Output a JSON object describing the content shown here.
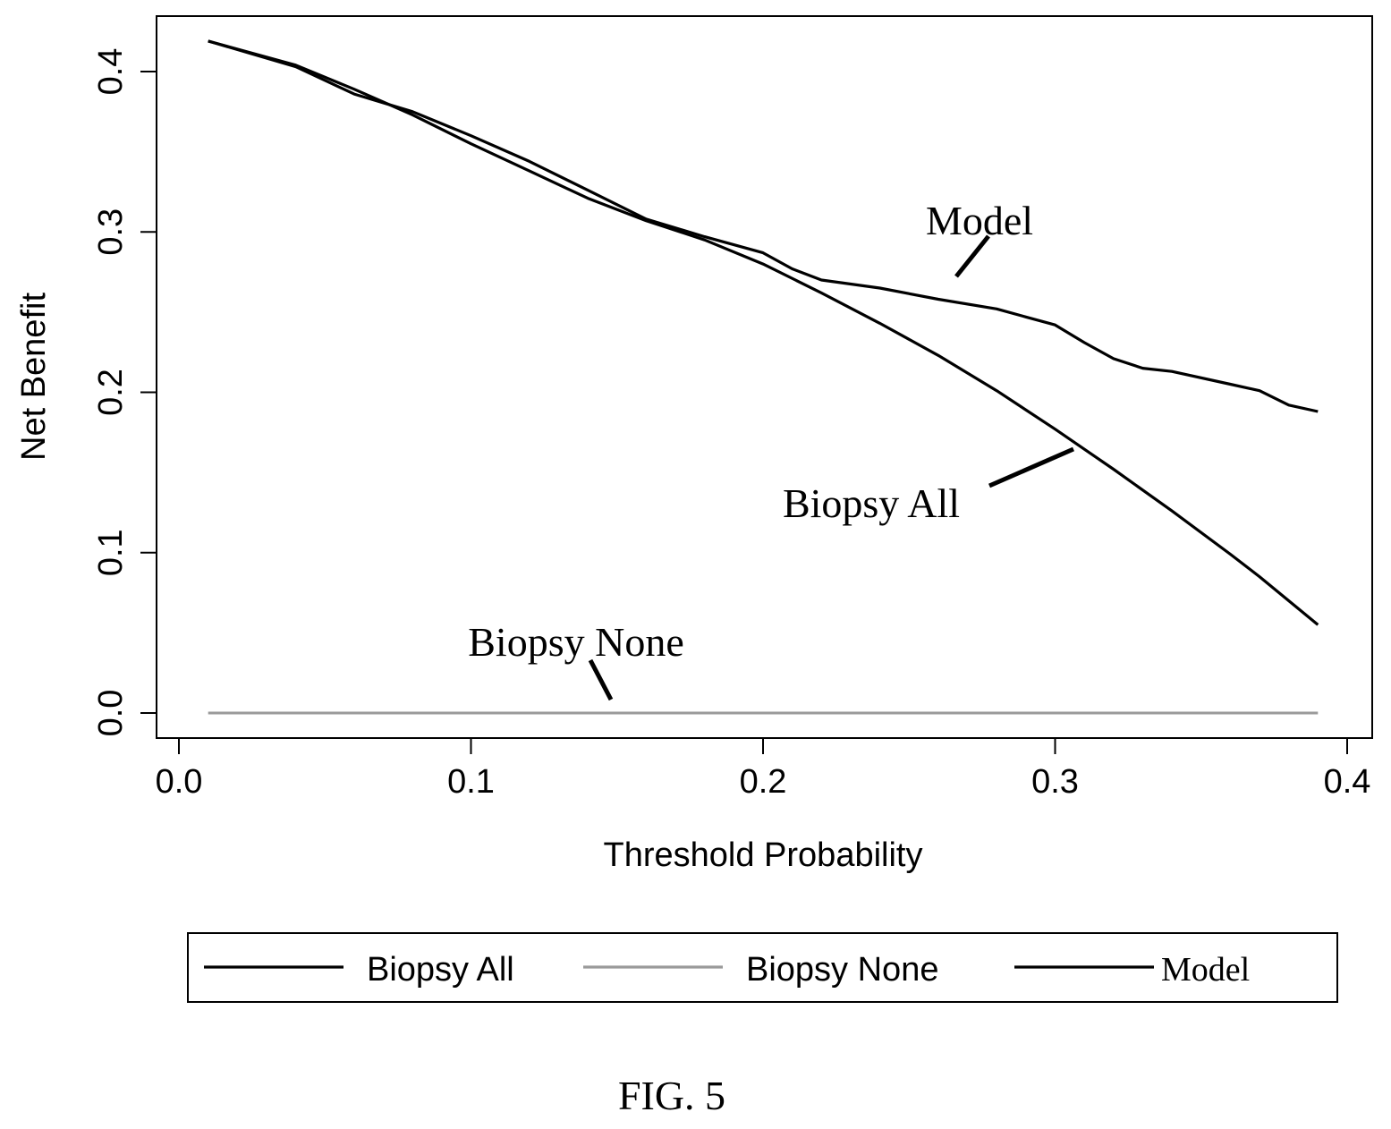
{
  "chart_data": {
    "type": "line",
    "title": "",
    "xlabel": "Threshold Probability",
    "ylabel": "Net Benefit",
    "xlim": [
      0.0,
      0.4
    ],
    "ylim": [
      0.0,
      0.4
    ],
    "x_ticks": [
      "0.0",
      "0.1",
      "0.2",
      "0.3",
      "0.4"
    ],
    "y_ticks": [
      "0.0",
      "0.1",
      "0.2",
      "0.3",
      "0.4"
    ],
    "grid": false,
    "legend_position": "bottom",
    "series": [
      {
        "name": "Biopsy All",
        "color": "#000000",
        "x": [
          0.01,
          0.04,
          0.06,
          0.08,
          0.1,
          0.12,
          0.14,
          0.16,
          0.18,
          0.2,
          0.22,
          0.24,
          0.26,
          0.28,
          0.3,
          0.32,
          0.34,
          0.36,
          0.37,
          0.39
        ],
        "y": [
          0.419,
          0.404,
          0.389,
          0.373,
          0.355,
          0.338,
          0.321,
          0.307,
          0.295,
          0.28,
          0.262,
          0.243,
          0.223,
          0.201,
          0.177,
          0.152,
          0.126,
          0.099,
          0.085,
          0.055
        ]
      },
      {
        "name": "Biopsy None",
        "color": "#9a9a9a",
        "x": [
          0.01,
          0.39
        ],
        "y": [
          0.0,
          0.0
        ]
      },
      {
        "name": "Model",
        "color": "#000000",
        "x": [
          0.01,
          0.04,
          0.06,
          0.08,
          0.1,
          0.12,
          0.14,
          0.16,
          0.18,
          0.2,
          0.21,
          0.22,
          0.24,
          0.26,
          0.28,
          0.29,
          0.3,
          0.31,
          0.32,
          0.33,
          0.34,
          0.36,
          0.37,
          0.38,
          0.39
        ],
        "y": [
          0.419,
          0.403,
          0.386,
          0.375,
          0.36,
          0.344,
          0.326,
          0.308,
          0.297,
          0.287,
          0.277,
          0.27,
          0.265,
          0.258,
          0.252,
          0.247,
          0.242,
          0.231,
          0.221,
          0.215,
          0.213,
          0.205,
          0.201,
          0.192,
          0.188
        ]
      }
    ],
    "annotations": [
      {
        "text": "Model",
        "series": "Model"
      },
      {
        "text": "Biopsy All",
        "series": "Biopsy All"
      },
      {
        "text": "Biopsy None",
        "series": "Biopsy None"
      }
    ],
    "legend": [
      "Biopsy All",
      "Biopsy None",
      "Model"
    ]
  },
  "figure_caption": "FIG. 5"
}
